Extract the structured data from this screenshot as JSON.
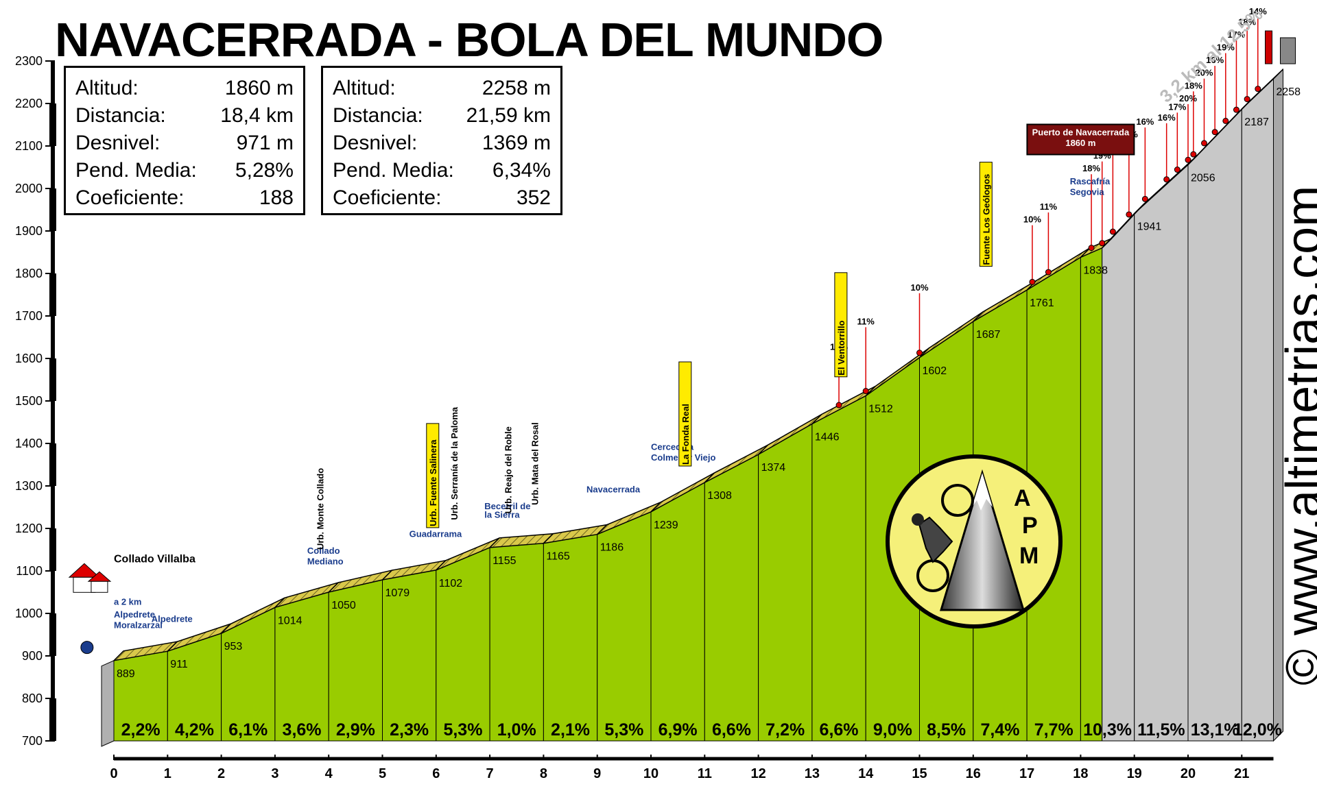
{
  "title": "NAVACERRADA - BOLA DEL MUNDO",
  "stats": [
    {
      "rows": [
        {
          "label": "Altitud:",
          "value": "1860 m"
        },
        {
          "label": "Distancia:",
          "value": "18,4 km"
        },
        {
          "label": "Desnivel:",
          "value": "971 m"
        },
        {
          "label": "Pend. Media:",
          "value": "5,28%"
        },
        {
          "label": "Coeficiente:",
          "value": "188"
        }
      ]
    },
    {
      "rows": [
        {
          "label": "Altitud:",
          "value": "2258 m"
        },
        {
          "label": "Distancia:",
          "value": "21,59 km"
        },
        {
          "label": "Desnivel:",
          "value": "1369 m"
        },
        {
          "label": "Pend. Media:",
          "value": "6,34%"
        },
        {
          "label": "Coeficiente:",
          "value": "352"
        }
      ]
    }
  ],
  "watermark": "© www.altimetrias.com",
  "chart_data": {
    "type": "area",
    "yticks": [
      700,
      800,
      900,
      1000,
      1100,
      1200,
      1300,
      1400,
      1500,
      1600,
      1700,
      1800,
      1900,
      2000,
      2100,
      2200,
      2300
    ],
    "xticks": [
      "0",
      "1",
      "2",
      "3",
      "4",
      "5",
      "6",
      "7",
      "8",
      "9",
      "10",
      "11",
      "12",
      "13",
      "14",
      "15",
      "16",
      "17",
      "18",
      "19",
      "20",
      "21"
    ],
    "ylim": [
      700,
      2300
    ],
    "xlim": [
      0,
      21.59
    ],
    "points": [
      {
        "x": 0,
        "y": 889,
        "label": "889"
      },
      {
        "x": 1,
        "y": 911,
        "label": "911"
      },
      {
        "x": 2,
        "y": 953,
        "label": "953"
      },
      {
        "x": 3,
        "y": 1014,
        "label": "1014"
      },
      {
        "x": 4,
        "y": 1050,
        "label": "1050"
      },
      {
        "x": 5,
        "y": 1079,
        "label": "1079"
      },
      {
        "x": 6,
        "y": 1102,
        "label": "1102"
      },
      {
        "x": 7,
        "y": 1155,
        "label": "1155"
      },
      {
        "x": 8,
        "y": 1165,
        "label": "1165"
      },
      {
        "x": 9,
        "y": 1186,
        "label": "1186"
      },
      {
        "x": 10,
        "y": 1239,
        "label": "1239"
      },
      {
        "x": 11,
        "y": 1308,
        "label": "1308"
      },
      {
        "x": 12,
        "y": 1374,
        "label": "1374"
      },
      {
        "x": 13,
        "y": 1446,
        "label": "1446"
      },
      {
        "x": 14,
        "y": 1512,
        "label": "1512"
      },
      {
        "x": 15,
        "y": 1602,
        "label": "1602"
      },
      {
        "x": 16,
        "y": 1687,
        "label": "1687"
      },
      {
        "x": 17,
        "y": 1761,
        "label": "1761"
      },
      {
        "x": 18,
        "y": 1838,
        "label": "1838"
      },
      {
        "x": 18.4,
        "y": 1860,
        "label": ""
      },
      {
        "x": 19,
        "y": 1941,
        "label": "1941"
      },
      {
        "x": 20,
        "y": 2056,
        "label": "2056"
      },
      {
        "x": 21,
        "y": 2187,
        "label": "2187"
      },
      {
        "x": 21.59,
        "y": 2258,
        "label": "2258"
      }
    ],
    "segment_gradients": [
      "2,2%",
      "4,2%",
      "6,1%",
      "3,6%",
      "2,9%",
      "2,3%",
      "5,3%",
      "1,0%",
      "2,1%",
      "5,3%",
      "6,9%",
      "6,6%",
      "7,2%",
      "6,6%",
      "9,0%",
      "8,5%",
      "7,4%",
      "7,7%",
      "10,3%",
      "11,5%",
      "13,1%",
      "12,0%"
    ],
    "summit_split_km": 18.4,
    "annotations": [
      {
        "text": "Collado Villalba",
        "x": 0,
        "y": 1120
      },
      {
        "text": "a 2 km",
        "x": 0,
        "y": 1020
      },
      {
        "text": "Alpedrete",
        "x": 0,
        "y": 990
      },
      {
        "text": "Moralzarzal",
        "x": 0,
        "y": 965
      },
      {
        "text": "Alpedrete",
        "x": 0.7,
        "y": 980
      },
      {
        "text": "Collado",
        "x": 3.6,
        "y": 1140
      },
      {
        "text": "Mediano",
        "x": 3.6,
        "y": 1115
      },
      {
        "text": "Urb. Monte Collado",
        "x": 3.9,
        "y": 1150
      },
      {
        "text": "Guadarrama",
        "x": 5.5,
        "y": 1180
      },
      {
        "text": "Urb. Fuente Salinera",
        "x": 6.0,
        "y": 1205
      },
      {
        "text": "Urb. Serranía de la Paloma",
        "x": 6.4,
        "y": 1220
      },
      {
        "text": "Becerril de",
        "x": 6.9,
        "y": 1245
      },
      {
        "text": "la Sierra",
        "x": 6.9,
        "y": 1225
      },
      {
        "text": "Urb. Reajo del Roble",
        "x": 7.4,
        "y": 1235
      },
      {
        "text": "Urb. Mata del Rosal",
        "x": 7.9,
        "y": 1255
      },
      {
        "text": "Navacerrada",
        "x": 8.8,
        "y": 1285
      },
      {
        "text": "Cercedilla",
        "x": 10.0,
        "y": 1385
      },
      {
        "text": "Colmenar Viejo",
        "x": 10.0,
        "y": 1360
      },
      {
        "text": "La Fonda Real",
        "x": 10.7,
        "y": 1350
      },
      {
        "text": "El Ventorrillo",
        "x": 13.6,
        "y": 1560
      },
      {
        "text": "Fuente Los Geólogos",
        "x": 16.3,
        "y": 1820
      },
      {
        "text": "Puerto de Navacerrada",
        "x": 18.0,
        "y": 2125
      },
      {
        "text": "1860 m",
        "x": 18.0,
        "y": 2100
      },
      {
        "text": "Rascafría",
        "x": 17.8,
        "y": 2010
      },
      {
        "text": "Segovia",
        "x": 17.8,
        "y": 1985
      },
      {
        "text": "3,2 km al 12,5%",
        "x": 19.6,
        "y": 2200
      }
    ],
    "gradient_flags": [
      {
        "text": "10%",
        "x": 13.5,
        "y": 1620
      },
      {
        "text": "11%",
        "x": 14.0,
        "y": 1680
      },
      {
        "text": "10%",
        "x": 15.0,
        "y": 1760
      },
      {
        "text": "10%",
        "x": 17.1,
        "y": 1920
      },
      {
        "text": "11%",
        "x": 17.4,
        "y": 1950
      },
      {
        "text": "18%",
        "x": 18.2,
        "y": 2040
      },
      {
        "text": "19%",
        "x": 18.4,
        "y": 2070
      },
      {
        "text": "17%",
        "x": 18.6,
        "y": 2095
      },
      {
        "text": "19%",
        "x": 18.9,
        "y": 2120
      },
      {
        "text": "16%",
        "x": 19.2,
        "y": 2150
      },
      {
        "text": "16%",
        "x": 19.6,
        "y": 2160
      },
      {
        "text": "17%",
        "x": 19.8,
        "y": 2185
      },
      {
        "text": "20%",
        "x": 20.0,
        "y": 2205
      },
      {
        "text": "18%",
        "x": 20.1,
        "y": 2235
      },
      {
        "text": "20%",
        "x": 20.3,
        "y": 2265
      },
      {
        "text": "16%",
        "x": 20.5,
        "y": 2295
      },
      {
        "text": "19%",
        "x": 20.7,
        "y": 2325
      },
      {
        "text": "17%",
        "x": 20.9,
        "y": 2355
      },
      {
        "text": "18%",
        "x": 21.1,
        "y": 2385
      },
      {
        "text": "14%",
        "x": 21.3,
        "y": 2410
      }
    ],
    "colors": {
      "climb": "#99cc00",
      "extension": "#c8c8c8",
      "road": "#d9c84a",
      "steep_road": "#6b3a1c"
    }
  }
}
